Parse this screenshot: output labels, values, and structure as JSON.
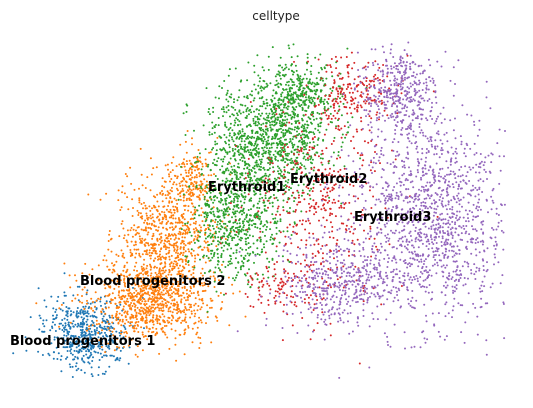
{
  "chart_data": {
    "type": "scatter",
    "title": "celltype",
    "xlabel": "",
    "ylabel": "",
    "grid": false,
    "axes_visible": false,
    "legend": "on data",
    "series": [
      {
        "name": "Blood progenitors 1",
        "color": "#1f77b4",
        "clusters": [
          {
            "cx": 86,
            "cy": 333,
            "rx": 38,
            "ry": 32,
            "n": 520
          }
        ]
      },
      {
        "name": "Blood progenitors 2",
        "color": "#ff7f0e",
        "clusters": [
          {
            "cx": 150,
            "cy": 300,
            "rx": 55,
            "ry": 38,
            "n": 900
          },
          {
            "cx": 165,
            "cy": 240,
            "rx": 42,
            "ry": 55,
            "n": 700
          },
          {
            "cx": 190,
            "cy": 180,
            "rx": 22,
            "ry": 30,
            "n": 200
          }
        ]
      },
      {
        "name": "Erythroid1",
        "color": "#2ca02c",
        "clusters": [
          {
            "cx": 270,
            "cy": 140,
            "rx": 55,
            "ry": 55,
            "n": 1100
          },
          {
            "cx": 235,
            "cy": 220,
            "rx": 40,
            "ry": 55,
            "n": 650
          },
          {
            "cx": 300,
            "cy": 90,
            "rx": 35,
            "ry": 25,
            "n": 300
          }
        ]
      },
      {
        "name": "Erythroid2",
        "color": "#d62728",
        "clusters": [
          {
            "cx": 320,
            "cy": 200,
            "rx": 60,
            "ry": 90,
            "n": 450
          },
          {
            "cx": 355,
            "cy": 90,
            "rx": 40,
            "ry": 30,
            "n": 200
          },
          {
            "cx": 285,
            "cy": 290,
            "rx": 35,
            "ry": 25,
            "n": 100
          }
        ]
      },
      {
        "name": "Erythroid3",
        "color": "#9467bd",
        "clusters": [
          {
            "cx": 430,
            "cy": 220,
            "rx": 70,
            "ry": 90,
            "n": 1300
          },
          {
            "cx": 400,
            "cy": 90,
            "rx": 35,
            "ry": 40,
            "n": 400
          },
          {
            "cx": 340,
            "cy": 285,
            "rx": 55,
            "ry": 40,
            "n": 450
          }
        ]
      }
    ],
    "labels": [
      {
        "text": "Blood progenitors 1",
        "x": 10,
        "y": 345
      },
      {
        "text": "Blood progenitors 2",
        "x": 80,
        "y": 285
      },
      {
        "text": "Erythroid1",
        "x": 208,
        "y": 191
      },
      {
        "text": "Erythroid2",
        "x": 290,
        "y": 183
      },
      {
        "text": "Erythroid3",
        "x": 354,
        "y": 221
      }
    ]
  }
}
